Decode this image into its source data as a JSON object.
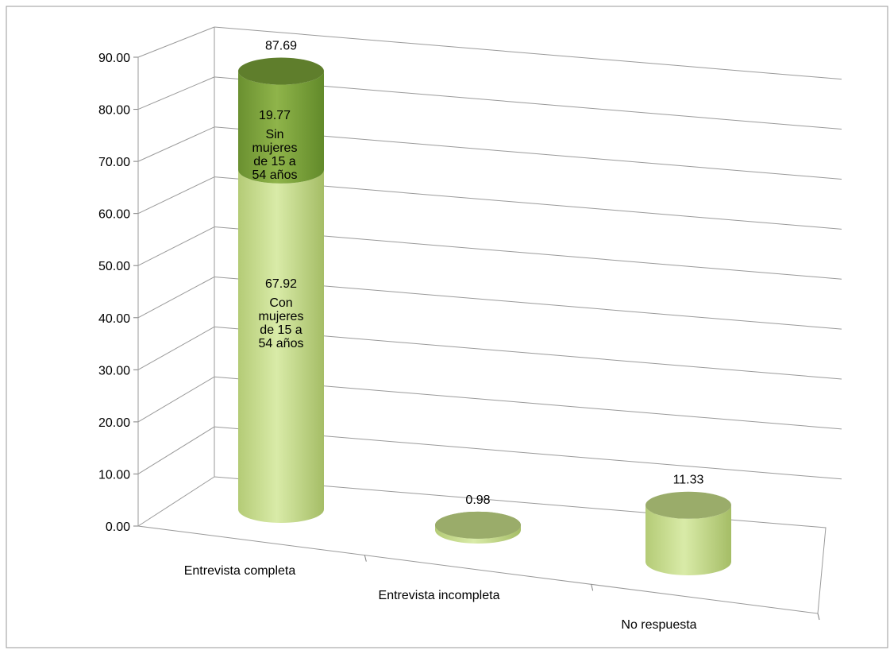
{
  "chart_data": {
    "type": "bar",
    "style": "3d-cylinder",
    "stacked": true,
    "categories": [
      "Entrevista completa",
      "Entrevista incompleta",
      "No respuesta"
    ],
    "series": [
      {
        "name": "Con mujeres de 15 a 54 años",
        "values": [
          67.92,
          0.98,
          11.33
        ]
      },
      {
        "name": "Sin mujeres de 15 a 54 años",
        "values": [
          19.77,
          0,
          0
        ]
      }
    ],
    "totals": [
      87.69,
      0.98,
      11.33
    ],
    "total_labels": [
      "87.69",
      "0.98",
      "11.33"
    ],
    "segment_labels": [
      "67.92",
      "19.77"
    ],
    "ylim": [
      0,
      90
    ],
    "yticks": [
      "0.00",
      "10.00",
      "20.00",
      "30.00",
      "40.00",
      "50.00",
      "60.00",
      "70.00",
      "80.00",
      "90.00"
    ],
    "grid": true,
    "legend": "none",
    "colors": {
      "light_body": "#c4d98a",
      "light_top": "#9aac6a",
      "dark_body": "#7fa43a",
      "dark_top": "#5f7e2c"
    }
  }
}
